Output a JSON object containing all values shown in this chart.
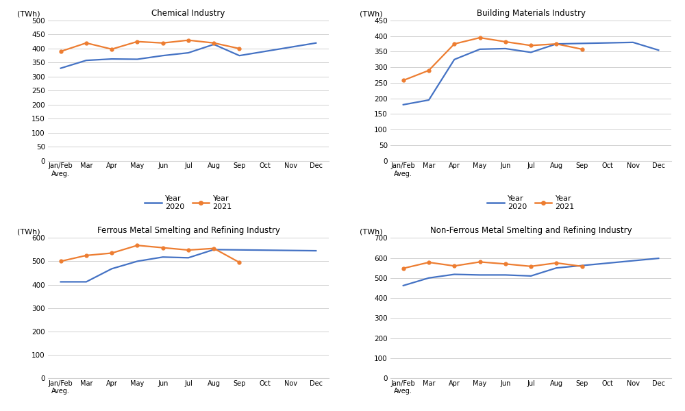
{
  "x_labels": [
    "Jan/Feb\nAveg.",
    "Mar",
    "Apr",
    "May",
    "Jun",
    "Jul",
    "Aug",
    "Sep",
    "Oct",
    "Nov",
    "Dec"
  ],
  "chemical": {
    "title": "Chemical Industry",
    "ylim": [
      0,
      500
    ],
    "yticks": [
      0,
      50,
      100,
      150,
      200,
      250,
      300,
      350,
      400,
      450,
      500
    ],
    "year2020": [
      330,
      358,
      363,
      362,
      375,
      385,
      415,
      375,
      null,
      null,
      420
    ],
    "year2021": [
      390,
      420,
      398,
      425,
      420,
      430,
      420,
      400,
      null,
      null,
      null
    ]
  },
  "building": {
    "title": "Building Materials Industry",
    "ylim": [
      0,
      450
    ],
    "yticks": [
      0,
      50,
      100,
      150,
      200,
      250,
      300,
      350,
      400,
      450
    ],
    "year2020": [
      180,
      195,
      325,
      358,
      360,
      348,
      375,
      null,
      null,
      380,
      355
    ],
    "year2021": [
      258,
      290,
      375,
      395,
      382,
      370,
      375,
      358,
      null,
      null,
      null
    ]
  },
  "ferrous": {
    "title": "Ferrous Metal Smelting and Refining Industry",
    "ylim": [
      0,
      600
    ],
    "yticks": [
      0,
      100,
      200,
      300,
      400,
      500,
      600
    ],
    "year2020": [
      412,
      412,
      468,
      500,
      518,
      515,
      550,
      null,
      null,
      null,
      545
    ],
    "year2021": [
      500,
      525,
      535,
      568,
      558,
      548,
      555,
      495,
      null,
      null,
      null
    ]
  },
  "nonferrous": {
    "title": "Non-Ferrous Metal Smelting and Refining Industry",
    "ylim": [
      0,
      700
    ],
    "yticks": [
      0,
      100,
      200,
      300,
      400,
      500,
      600,
      700
    ],
    "year2020": [
      462,
      500,
      518,
      515,
      515,
      510,
      550,
      null,
      null,
      null,
      598
    ],
    "year2021": [
      548,
      578,
      560,
      580,
      570,
      558,
      575,
      558,
      null,
      null,
      null
    ]
  },
  "color_2020": "#4472C4",
  "color_2021": "#ED7D31",
  "twh_label": "(TWh)",
  "legend_label_2020": "Year\n2020",
  "legend_label_2021": "Year\n2021",
  "bg_color": "#ffffff",
  "grid_color": "#d0d0d0",
  "spine_color": "#d0d0d0"
}
